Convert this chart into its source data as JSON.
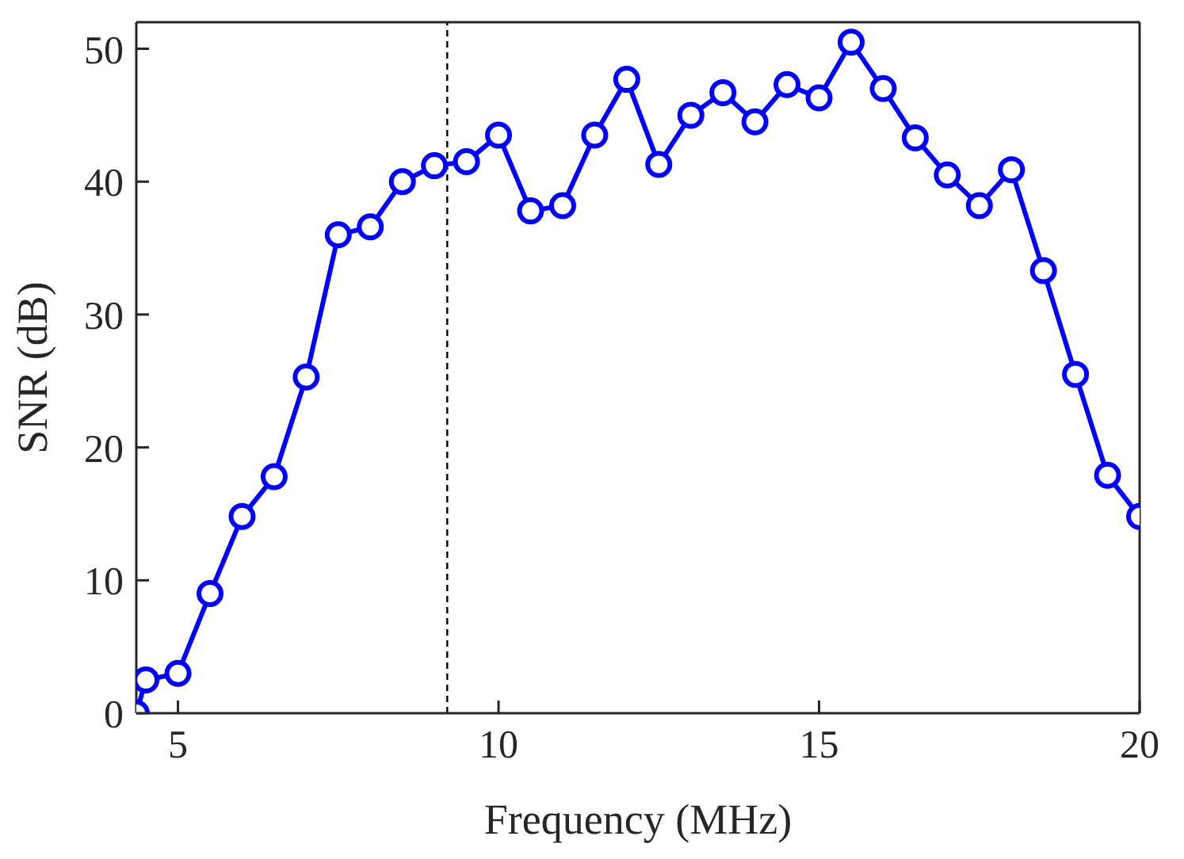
{
  "chart_data": {
    "type": "line",
    "xlabel": "Frequency (MHz)",
    "ylabel": "SNR (dB)",
    "x": [
      4.35,
      4.5,
      5,
      5.5,
      6,
      6.5,
      7,
      7.5,
      8,
      8.5,
      9,
      9.5,
      10,
      10.5,
      11,
      11.5,
      12,
      12.5,
      13,
      13.5,
      14,
      14.5,
      15,
      15.5,
      16,
      16.5,
      17,
      17.5,
      18,
      18.5,
      19,
      19.5,
      20
    ],
    "series": [
      {
        "color": "#0000ff",
        "values": [
          0,
          2.5,
          3,
          9,
          14.8,
          17.8,
          25.3,
          36,
          36.6,
          40,
          41.2,
          41.5,
          43.5,
          37.8,
          38.2,
          43.5,
          47.7,
          41.3,
          45,
          46.7,
          44.5,
          47.3,
          46.3,
          50.5,
          47,
          43.3,
          40.5,
          38.2,
          40.9,
          33.3,
          25.5,
          17.9,
          14.8
        ]
      }
    ],
    "xlim": [
      4.35,
      20
    ],
    "xticks": [
      5,
      10,
      15,
      20
    ],
    "ylim": [
      0,
      52
    ],
    "yticks": [
      0,
      10,
      20,
      30,
      40,
      50
    ],
    "ref_lines": [
      {
        "axis": "x",
        "value": 9.2,
        "color": "#000000",
        "line_style": "dashed"
      }
    ],
    "marker": "circle",
    "line_style": "solid",
    "grid": false,
    "legend": false
  }
}
